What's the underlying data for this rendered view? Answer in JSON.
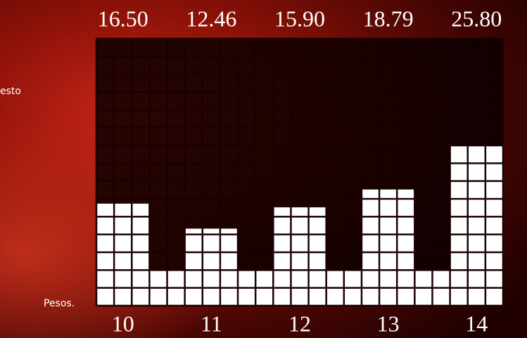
{
  "chart_data": {
    "type": "bar",
    "categories": [
      "10",
      "11",
      "12",
      "13",
      "14"
    ],
    "values": [
      16.5,
      12.46,
      15.9,
      18.79,
      25.8
    ],
    "value_labels": [
      "16.50",
      "12.46",
      "15.90",
      "18.79",
      "25.80"
    ],
    "color": "#ffffff",
    "annotations": [
      "esto",
      "Pesos."
    ]
  }
}
